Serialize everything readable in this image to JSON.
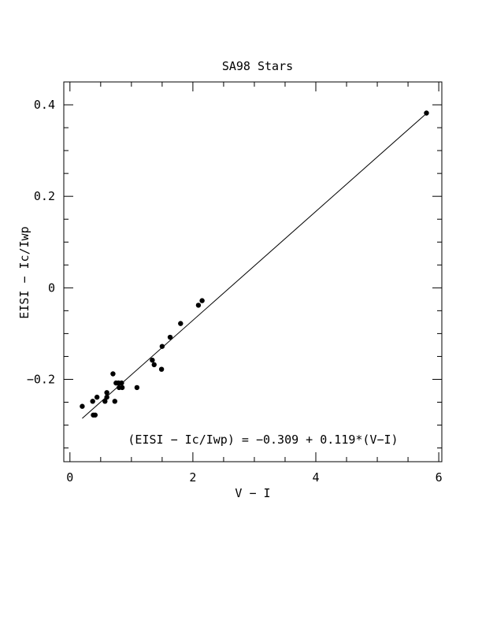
{
  "chart_data": {
    "type": "scatter",
    "title": "SA98 Stars",
    "xlabel": "V − I",
    "ylabel": "EISI − Ic/Iwp",
    "xlim": [
      -0.1,
      6.05
    ],
    "ylim": [
      -0.38,
      0.45
    ],
    "xticks": [
      0,
      2,
      4,
      6
    ],
    "xtick_labels": [
      "0",
      "2",
      "4",
      "6"
    ],
    "yticks": [
      -0.2,
      0,
      0.2,
      0.4
    ],
    "ytick_labels": [
      "−0.2",
      "0",
      "0.2",
      "0.4"
    ],
    "grid": false,
    "legend": "none",
    "annotation": "(EISI − Ic/Iwp) =  −0.309 + 0.119*(V−I)",
    "fit": {
      "intercept": -0.309,
      "slope": 0.119,
      "x_range": [
        0.2,
        5.8
      ]
    },
    "series": [
      {
        "points": [
          [
            0.2,
            -0.259
          ],
          [
            0.37,
            -0.248
          ],
          [
            0.38,
            -0.278
          ],
          [
            0.41,
            -0.278
          ],
          [
            0.44,
            -0.239
          ],
          [
            0.57,
            -0.248
          ],
          [
            0.6,
            -0.229
          ],
          [
            0.6,
            -0.239
          ],
          [
            0.7,
            -0.188
          ],
          [
            0.73,
            -0.248
          ],
          [
            0.75,
            -0.208
          ],
          [
            0.79,
            -0.208
          ],
          [
            0.8,
            -0.218
          ],
          [
            0.84,
            -0.208
          ],
          [
            0.85,
            -0.218
          ],
          [
            1.09,
            -0.218
          ],
          [
            1.34,
            -0.158
          ],
          [
            1.37,
            -0.168
          ],
          [
            1.49,
            -0.178
          ],
          [
            1.5,
            -0.128
          ],
          [
            1.63,
            -0.108
          ],
          [
            1.8,
            -0.078
          ],
          [
            2.09,
            -0.038
          ],
          [
            2.15,
            -0.028
          ],
          [
            5.8,
            0.382
          ]
        ]
      }
    ]
  }
}
